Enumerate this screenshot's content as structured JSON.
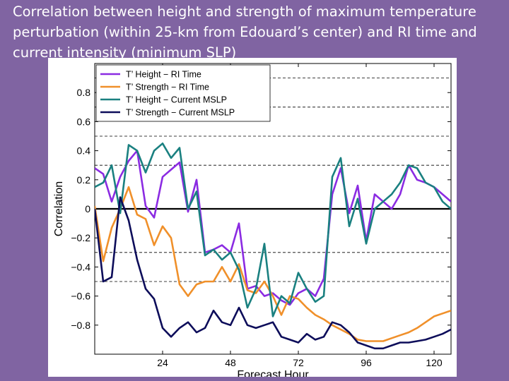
{
  "slide": {
    "title": "Correlation between height and strength of maximum temperature perturbation (within 25-km from Edouard’s center) and RI time and current intensity (minimum SLP)"
  },
  "chart_data": {
    "type": "line",
    "xlabel": "Forecast Hour",
    "ylabel": "Correlation",
    "xlim": [
      0,
      126
    ],
    "ylim": [
      -1.0,
      1.0
    ],
    "xticks": [
      24,
      48,
      72,
      96,
      120
    ],
    "yticks": [
      -0.8,
      -0.6,
      -0.4,
      -0.2,
      0,
      0.2,
      0.4,
      0.6,
      0.8
    ],
    "ytick_labels": [
      "−0.8",
      "−0.6",
      "−0.4",
      "−0.2",
      "0",
      "0.2",
      "0.4",
      "0.6",
      "0.8"
    ],
    "dashed_gridlines_y": [
      -0.5,
      -0.3,
      0.3,
      0.5,
      0.7,
      0.9
    ],
    "zero_line": true,
    "legend_position": "top-left",
    "x": [
      0,
      3,
      6,
      9,
      12,
      15,
      18,
      21,
      24,
      27,
      30,
      33,
      36,
      39,
      42,
      45,
      48,
      51,
      54,
      57,
      60,
      63,
      66,
      69,
      72,
      75,
      78,
      81,
      84,
      87,
      90,
      93,
      96,
      99,
      102,
      105,
      108,
      111,
      114,
      117,
      120,
      123,
      126
    ],
    "series": [
      {
        "name": "T’ Height − RI Time",
        "color": "#8b2be2",
        "values": [
          0.28,
          0.24,
          0.05,
          0.22,
          0.33,
          0.4,
          0.02,
          -0.06,
          0.22,
          0.27,
          0.32,
          -0.02,
          0.2,
          -0.3,
          -0.28,
          -0.25,
          -0.3,
          -0.1,
          -0.55,
          -0.53,
          -0.6,
          -0.58,
          -0.63,
          -0.66,
          -0.58,
          -0.55,
          -0.6,
          -0.48,
          0.1,
          0.28,
          -0.03,
          0.16,
          -0.22,
          0.1,
          0.05,
          0.0,
          0.1,
          0.3,
          0.2,
          0.18,
          0.15,
          0.1,
          0.05
        ]
      },
      {
        "name": "T’ Strength − RI Time",
        "color": "#f0902a",
        "values": [
          0.02,
          -0.36,
          -0.13,
          0.0,
          0.15,
          -0.04,
          -0.07,
          -0.25,
          -0.12,
          -0.2,
          -0.52,
          -0.6,
          -0.52,
          -0.5,
          -0.5,
          -0.4,
          -0.5,
          -0.38,
          -0.56,
          -0.58,
          -0.5,
          -0.6,
          -0.73,
          -0.6,
          -0.62,
          -0.68,
          -0.73,
          -0.76,
          -0.8,
          -0.83,
          -0.86,
          -0.9,
          -0.91,
          -0.91,
          -0.91,
          -0.89,
          -0.87,
          -0.85,
          -0.82,
          -0.78,
          -0.74,
          -0.72,
          -0.7
        ]
      },
      {
        "name": "T’ Height − Current MSLP",
        "color": "#1a8080",
        "values": [
          0.15,
          0.18,
          0.3,
          -0.03,
          0.44,
          0.4,
          0.25,
          0.4,
          0.45,
          0.35,
          0.42,
          0.0,
          0.12,
          -0.32,
          -0.28,
          -0.35,
          -0.3,
          -0.42,
          -0.68,
          -0.55,
          -0.24,
          -0.74,
          -0.6,
          -0.65,
          -0.44,
          -0.55,
          -0.64,
          -0.6,
          0.22,
          0.35,
          -0.12,
          0.07,
          -0.24,
          0.0,
          0.05,
          0.1,
          0.18,
          0.3,
          0.28,
          0.18,
          0.15,
          0.05,
          0.0
        ]
      },
      {
        "name": "T’ Strength − Current MSLP",
        "color": "#0d0d5a",
        "values": [
          0.0,
          -0.5,
          -0.47,
          0.08,
          -0.08,
          -0.35,
          -0.55,
          -0.62,
          -0.82,
          -0.88,
          -0.82,
          -0.78,
          -0.85,
          -0.82,
          -0.7,
          -0.78,
          -0.8,
          -0.68,
          -0.8,
          -0.82,
          -0.8,
          -0.78,
          -0.88,
          -0.9,
          -0.92,
          -0.86,
          -0.9,
          -0.88,
          -0.78,
          -0.8,
          -0.85,
          -0.92,
          -0.94,
          -0.96,
          -0.96,
          -0.94,
          -0.92,
          -0.92,
          -0.91,
          -0.9,
          -0.88,
          -0.86,
          -0.83
        ]
      }
    ]
  }
}
